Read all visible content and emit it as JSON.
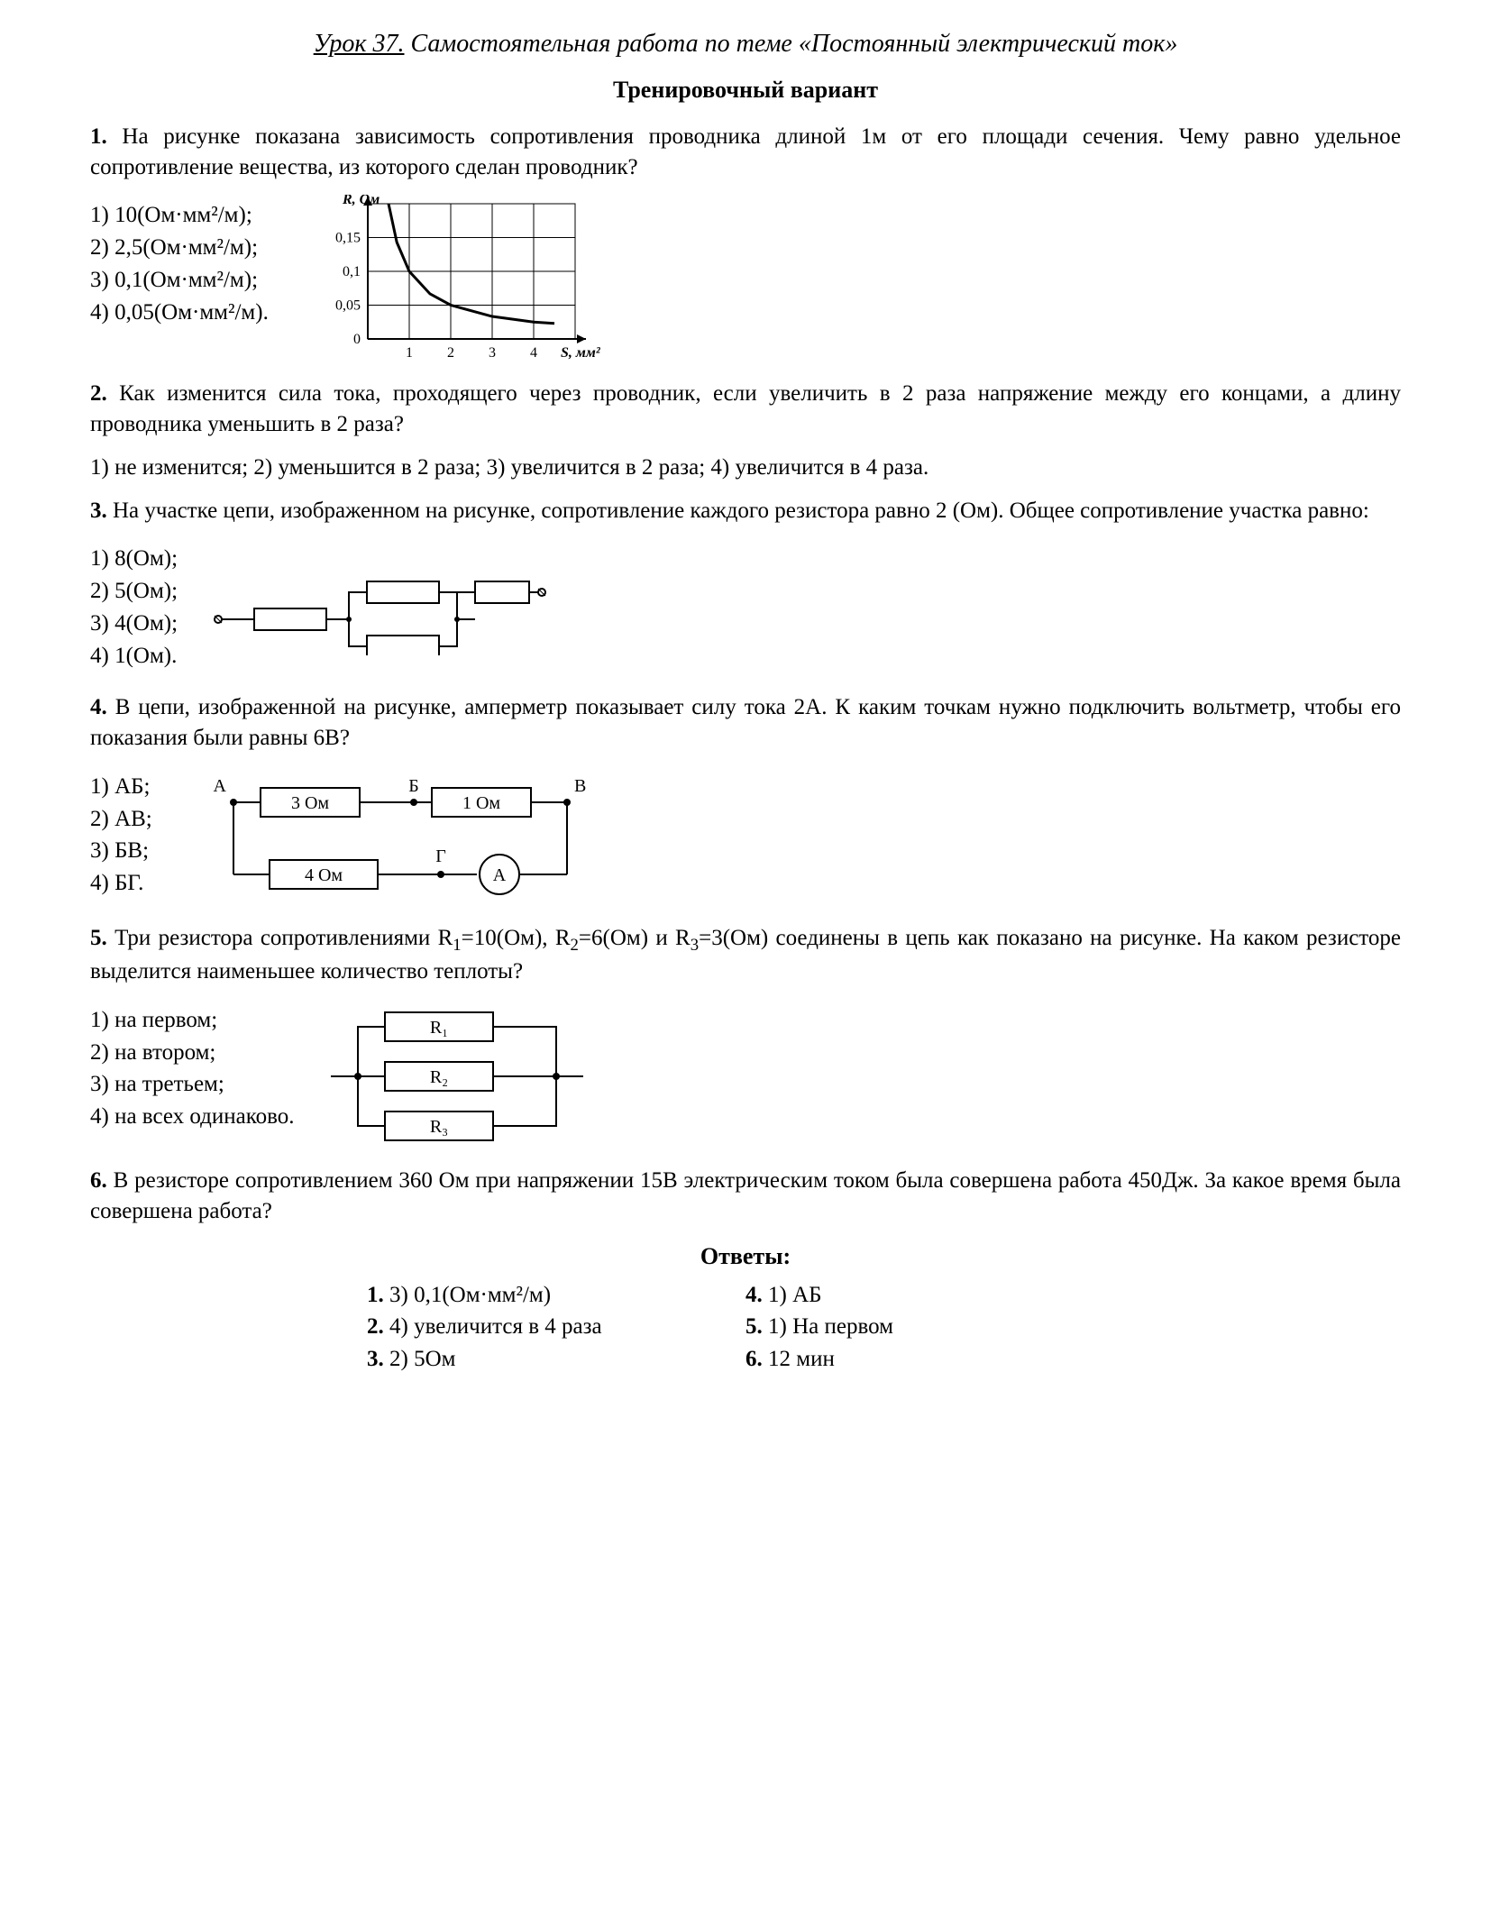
{
  "title_prefix": "Урок 37.",
  "title_rest": " Самостоятельная работа по теме «Постоянный электрический ток»",
  "subtitle": "Тренировочный вариант",
  "q1": {
    "num": "1.",
    "text": " На рисунке показана зависимость сопротивления проводника длиной 1м от его площади сечения. Чему равно удельное сопротивление вещества, из которого сделан проводник?",
    "opts": [
      "1) 10(Ом·мм²/м);",
      "2) 2,5(Ом·мм²/м);",
      "3) 0,1(Ом·мм²/м);",
      "4) 0,05(Ом·мм²/м)."
    ],
    "chart": {
      "type": "line",
      "x_label": "S, мм²",
      "y_label": "R, Ом",
      "x_ticks": [
        1,
        2,
        3,
        4
      ],
      "y_ticks": [
        0,
        0.05,
        0.1,
        0.15
      ],
      "y_tick_labels": [
        "0",
        "0,05",
        "0,1",
        "0,15"
      ],
      "xlim": [
        0,
        5
      ],
      "ylim": [
        0,
        0.2
      ],
      "curve": [
        [
          0.5,
          0.2
        ],
        [
          0.7,
          0.143
        ],
        [
          1,
          0.1
        ],
        [
          1.5,
          0.0667
        ],
        [
          2,
          0.05
        ],
        [
          3,
          0.0333
        ],
        [
          4,
          0.025
        ],
        [
          4.5,
          0.023
        ]
      ],
      "axis_color": "#000000",
      "grid_color": "#000000",
      "curve_color": "#000000",
      "curve_width": 3,
      "font_size": 16,
      "label_font": "bold italic"
    }
  },
  "q2": {
    "num": "2.",
    "text": " Как изменится сила тока, проходящего через проводник, если увеличить в 2 раза напряжение между его концами, а длину проводника уменьшить в 2 раза?",
    "inline": "1) не изменится; 2) уменьшится в 2 раза; 3) увеличится в 2 раза; 4) увеличится в 4 раза."
  },
  "q3": {
    "num": "3.",
    "text": " На участке цепи, изображенном на рисунке, сопротивление каждого резистора равно 2 (Ом). Общее сопротивление участка равно:",
    "opts": [
      "1) 8(Ом);",
      "2) 5(Ом);",
      "3) 4(Ом);",
      "4) 1(Ом)."
    ],
    "diagram": {
      "type": "circuit",
      "stroke": "#000000",
      "stroke_width": 2
    }
  },
  "q4": {
    "num": "4.",
    "text": " В цепи, изображенной на рисунке, амперметр показывает силу тока 2А. К каким точкам нужно подключить вольтметр, чтобы его показания были равны 6В?",
    "opts": [
      "1) АБ;",
      "2) АВ;",
      "3) БВ;",
      "4) БГ."
    ],
    "diagram": {
      "type": "circuit",
      "labels": {
        "A": "А",
        "B": "Б",
        "V": "В",
        "G": "Г",
        "R1": "3 Ом",
        "R2": "1 Ом",
        "R3": "4 Ом",
        "Amp": "A"
      },
      "stroke": "#000000",
      "stroke_width": 2,
      "font_size": 20
    }
  },
  "q5": {
    "num": "5.",
    "text_html": " Три резистора сопротивлениями R<sub>1</sub>=10(Ом), R<sub>2</sub>=6(Ом) и R<sub>3</sub>=3(Ом) соединены в цепь как показано на рисунке. На каком резисторе выделится наименьшее количество теплоты?",
    "opts": [
      "1) на первом;",
      "2) на втором;",
      "3) на третьем;",
      "4) на всех одинаково."
    ],
    "diagram": {
      "type": "circuit",
      "labels": {
        "R1": "R₁",
        "R2": "R₂",
        "R3": "R₃"
      },
      "stroke": "#000000",
      "stroke_width": 2,
      "font_size": 20
    }
  },
  "q6": {
    "num": "6.",
    "text": " В резисторе сопротивлением 360 Ом при напряжении 15В электрическим током была совершена работа 450Дж. За какое время была совершена работа?"
  },
  "answers": {
    "title": "Ответы:",
    "col1": [
      {
        "n": "1.",
        "t": " 3) 0,1(Ом·мм²/м)"
      },
      {
        "n": "2.",
        "t": " 4) увеличится в 4 раза"
      },
      {
        "n": "3.",
        "t": " 2) 5Ом"
      }
    ],
    "col2": [
      {
        "n": "4.",
        "t": " 1) АБ"
      },
      {
        "n": "5.",
        "t": " 1) На первом"
      },
      {
        "n": "6.",
        "t": " 12 мин"
      }
    ]
  }
}
